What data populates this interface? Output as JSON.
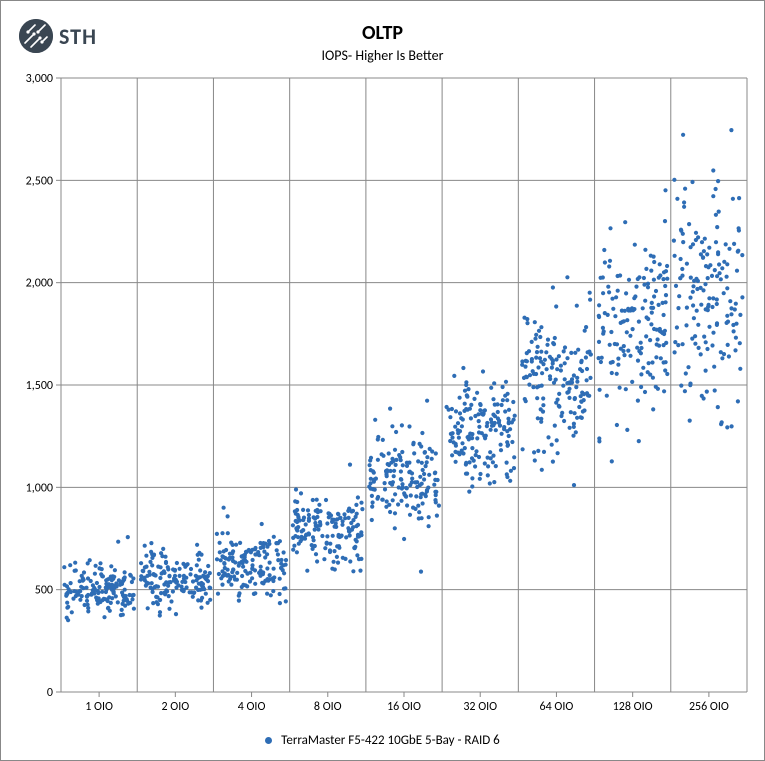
{
  "logo": {
    "text": "STH"
  },
  "chart": {
    "type": "scatter",
    "title": "OLTP",
    "subtitle": "IOPS- Higher Is Better",
    "background_color": "#ffffff",
    "grid_color": "#888888",
    "axis_color": "#888888",
    "tick_color": "#888888",
    "tick_font_size": 12,
    "ylabel": "",
    "ylim": [
      0,
      3000
    ],
    "yticks": [
      0,
      500,
      1000,
      1500,
      2000,
      2500,
      3000
    ],
    "ytick_labels": [
      "0",
      "500",
      "1,000",
      "1,500",
      "2,000",
      "2,500",
      "3,000"
    ],
    "xcategories": [
      "1 OIO",
      "2 OIO",
      "4 OIO",
      "8 OIO",
      "16 OIO",
      "32 OIO",
      "64 OIO",
      "128 OIO",
      "256 OIO"
    ],
    "series": [
      {
        "name": "TerraMaster F5-422 10GbE 5-Bay - RAID 6",
        "marker_color": "#2e6db5",
        "marker_size": 2.1,
        "marker_style": "circle",
        "points_per_bucket": 160,
        "buckets": [
          {
            "label": "1 OIO",
            "mean": 500,
            "spread": 60,
            "outlier_low": 330,
            "outlier_high": 650
          },
          {
            "label": "2 OIO",
            "mean": 560,
            "spread": 70,
            "outlier_low": 320,
            "outlier_high": 760
          },
          {
            "label": "4 OIO",
            "mean": 600,
            "spread": 80,
            "outlier_low": 380,
            "outlier_high": 940
          },
          {
            "label": "8 OIO",
            "mean": 800,
            "spread": 90,
            "outlier_low": 520,
            "outlier_high": 1090
          },
          {
            "label": "16 OIO",
            "mean": 1050,
            "spread": 110,
            "outlier_low": 530,
            "outlier_high": 1350
          },
          {
            "label": "32 OIO",
            "mean": 1280,
            "spread": 130,
            "outlier_low": 970,
            "outlier_high": 1550
          },
          {
            "label": "64 OIO",
            "mean": 1530,
            "spread": 170,
            "outlier_low": 1000,
            "outlier_high": 2100
          },
          {
            "label": "128 OIO",
            "mean": 1800,
            "spread": 200,
            "outlier_low": 1100,
            "outlier_high": 2500
          },
          {
            "label": "256 OIO",
            "mean": 1950,
            "spread": 280,
            "outlier_low": 1220,
            "outlier_high": 2620
          }
        ]
      }
    ],
    "legend_position": "bottom"
  }
}
